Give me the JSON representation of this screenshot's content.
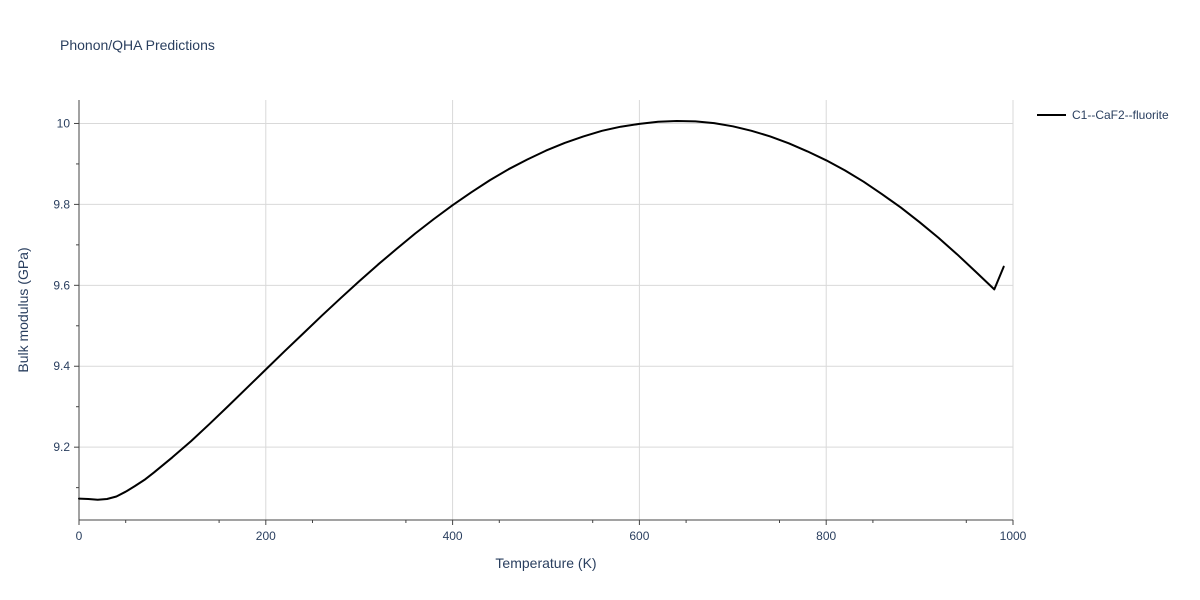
{
  "chart_data": {
    "type": "line",
    "title": "Phonon/QHA Predictions",
    "xlabel": "Temperature (K)",
    "ylabel": "Bulk modulus (GPa)",
    "xlim": [
      0,
      1000
    ],
    "ylim": [
      9.02,
      10.058
    ],
    "x_ticks": [
      0,
      200,
      400,
      600,
      800,
      1000
    ],
    "y_ticks": [
      9.2,
      9.4,
      9.6,
      9.8,
      10
    ],
    "x_tick_labels": [
      "0",
      "200",
      "400",
      "600",
      "800",
      "1000"
    ],
    "y_tick_labels": [
      "9.2",
      "9.4",
      "9.6",
      "9.8",
      "10"
    ],
    "grid": true,
    "legend_position": "top-right",
    "series": [
      {
        "name": "C1--CaF2--fluorite",
        "color": "#000000",
        "x": [
          0,
          10,
          20,
          30,
          40,
          50,
          60,
          70,
          80,
          100,
          120,
          140,
          160,
          180,
          200,
          220,
          240,
          260,
          280,
          300,
          320,
          340,
          360,
          380,
          400,
          420,
          440,
          460,
          480,
          500,
          520,
          540,
          560,
          580,
          600,
          620,
          640,
          660,
          680,
          700,
          720,
          740,
          760,
          780,
          800,
          820,
          840,
          860,
          880,
          900,
          920,
          940,
          960,
          980,
          990
        ],
        "y": [
          9.073,
          9.072,
          9.07,
          9.072,
          9.078,
          9.09,
          9.104,
          9.119,
          9.137,
          9.175,
          9.215,
          9.258,
          9.302,
          9.347,
          9.392,
          9.437,
          9.481,
          9.525,
          9.568,
          9.61,
          9.651,
          9.69,
          9.728,
          9.764,
          9.798,
          9.83,
          9.86,
          9.887,
          9.911,
          9.933,
          9.952,
          9.968,
          9.982,
          9.992,
          9.999,
          10.004,
          10.006,
          10.005,
          10.001,
          9.993,
          9.982,
          9.968,
          9.951,
          9.931,
          9.909,
          9.884,
          9.856,
          9.825,
          9.792,
          9.756,
          9.718,
          9.677,
          9.634,
          9.59,
          9.646
        ]
      }
    ]
  }
}
